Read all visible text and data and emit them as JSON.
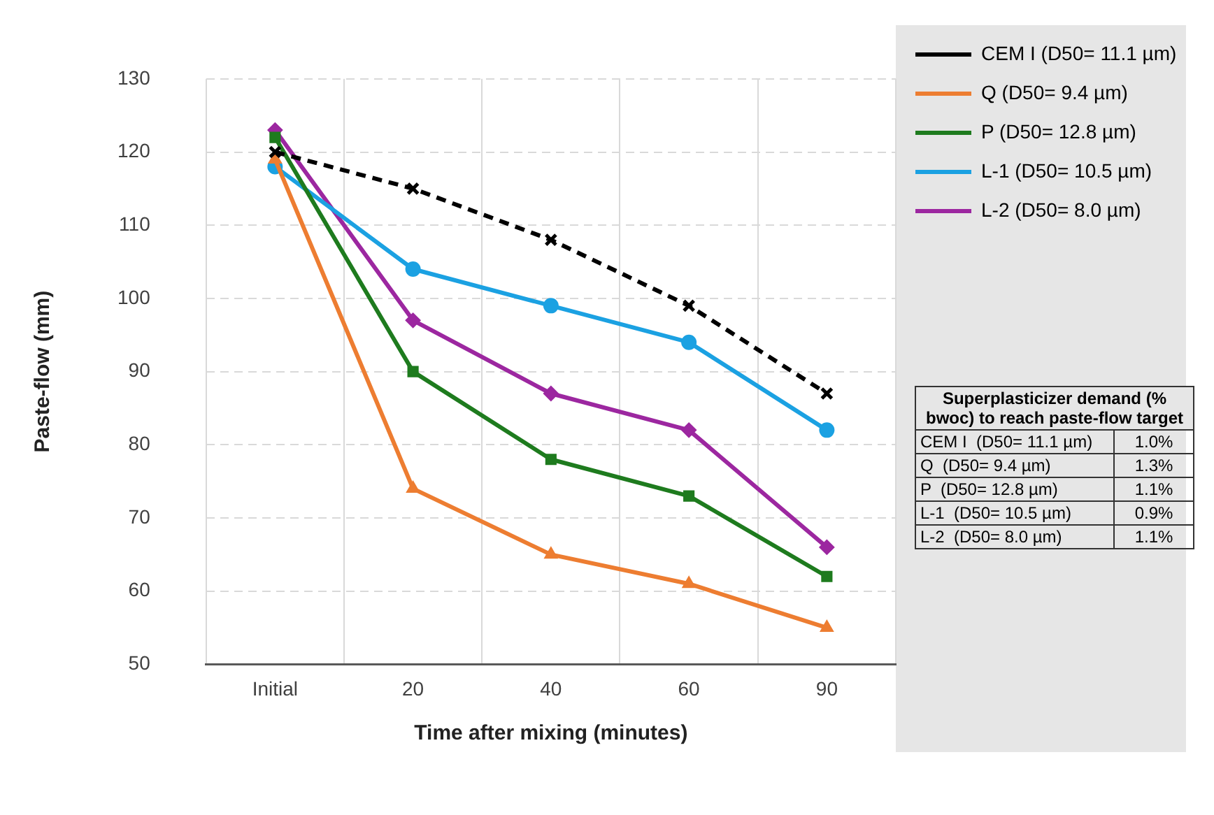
{
  "chart_data": {
    "type": "line",
    "xlabel": "Time after mixing (minutes)",
    "ylabel": "Paste-flow (mm)",
    "categories": [
      "Initial",
      "20",
      "40",
      "60",
      "90"
    ],
    "series": [
      {
        "name": "CEM I (D50= 11.1 µm)",
        "color": "#000000",
        "values": [
          120,
          115,
          108,
          99,
          87
        ],
        "marker": "cross",
        "line_style": "dashed"
      },
      {
        "name": "Q (D50= 9.4 µm)",
        "color": "#ed7d31",
        "values": [
          119,
          74,
          65,
          61,
          55
        ],
        "marker": "triangle",
        "line_style": "solid"
      },
      {
        "name": "P (D50= 12.8 µm)",
        "color": "#1e7b1e",
        "values": [
          122,
          90,
          78,
          73,
          62
        ],
        "marker": "square",
        "line_style": "solid"
      },
      {
        "name": "L-1 (D50= 10.5 µm)",
        "color": "#1ba1e2",
        "values": [
          118,
          104,
          99,
          94,
          82
        ],
        "marker": "circle",
        "line_style": "solid"
      },
      {
        "name": "L-2 (D50= 8.0 µm)",
        "color": "#9c27a0",
        "values": [
          123,
          97,
          87,
          82,
          66
        ],
        "marker": "diamond",
        "line_style": "solid"
      }
    ],
    "ylim": [
      50,
      130
    ],
    "yticks": [
      50,
      60,
      70,
      80,
      90,
      100,
      110,
      120,
      130
    ],
    "grid": true,
    "legend": "top right",
    "annotations": [
      "Superplasticizer demand (% bwoc) to reach paste-flow target",
      "CEM I  (D50= 11.1 µm)",
      "1.0%",
      "Q  (D50= 9.4 µm)",
      "1.3%",
      "P  (D50= 12.8 µm)",
      "1.1%",
      "L-1  (D50= 10.5 µm)",
      "0.9%",
      "L-2  (D50= 8.0 µm)",
      "1.1%"
    ]
  }
}
